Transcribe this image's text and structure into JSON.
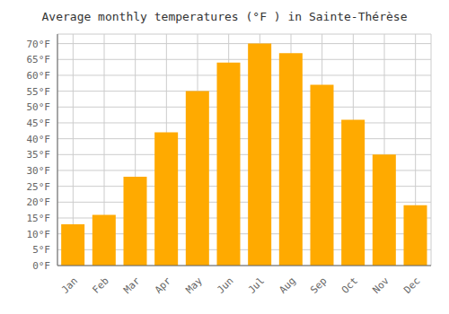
{
  "chart_data": {
    "type": "bar",
    "title": "Average monthly temperatures (°F ) in Sainte-Thérèse",
    "categories": [
      "Jan",
      "Feb",
      "Mar",
      "Apr",
      "May",
      "Jun",
      "Jul",
      "Aug",
      "Sep",
      "Oct",
      "Nov",
      "Dec"
    ],
    "values": [
      13,
      16,
      28,
      42,
      55,
      64,
      70,
      67,
      57,
      46,
      35,
      19
    ],
    "color": "#FFAA00",
    "ylim": [
      0,
      73
    ],
    "yticks": [
      {
        "value": 0,
        "label": "0°F"
      },
      {
        "value": 5,
        "label": "5°F"
      },
      {
        "value": 10,
        "label": "10°F"
      },
      {
        "value": 15,
        "label": "15°F"
      },
      {
        "value": 20,
        "label": "20°F"
      },
      {
        "value": 25,
        "label": "25°F"
      },
      {
        "value": 30,
        "label": "30°F"
      },
      {
        "value": 35,
        "label": "35°F"
      },
      {
        "value": 40,
        "label": "40°F"
      },
      {
        "value": 45,
        "label": "45°F"
      },
      {
        "value": 50,
        "label": "50°F"
      },
      {
        "value": 55,
        "label": "55°F"
      },
      {
        "value": 60,
        "label": "60°F"
      },
      {
        "value": 65,
        "label": "65°F"
      },
      {
        "value": 70,
        "label": "70°F"
      }
    ],
    "grid": true
  }
}
